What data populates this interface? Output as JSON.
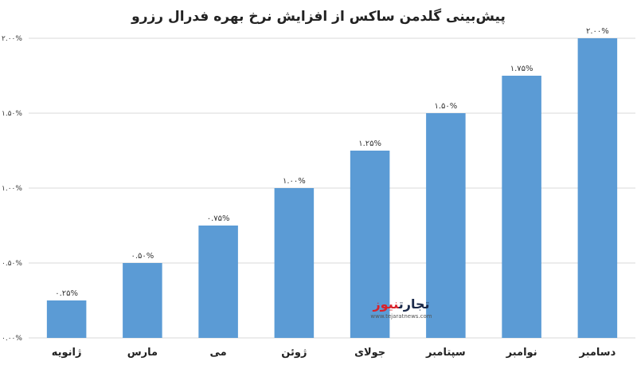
{
  "chart_data": {
    "type": "bar",
    "title": "پیش‌بینی گلدمن ساکس از افزایش نرخ بهره فدرال رزرو",
    "categories": [
      "ژانویه",
      "مارس",
      "می",
      "ژوئن",
      "جولای",
      "سپتامبر",
      "نوامبر",
      "دسامبر"
    ],
    "values": [
      0.25,
      0.5,
      0.75,
      1.0,
      1.25,
      1.5,
      1.75,
      2.0
    ],
    "value_labels": [
      "۰.۲۵%",
      "۰.۵۰%",
      "۰.۷۵%",
      "۱.۰۰%",
      "۱.۲۵%",
      "۱.۵۰%",
      "۱.۷۵%",
      "۲.۰۰%"
    ],
    "ylim": [
      0,
      2.0
    ],
    "yticks": [
      0,
      0.5,
      1.0,
      1.5,
      2.0
    ],
    "ytick_labels": [
      "۰.۰۰%",
      "۰.۵۰%",
      "۱.۰۰%",
      "۱.۵۰%",
      "۲.۰۰%"
    ],
    "grid": true,
    "bar_color": "#5b9bd5",
    "xlabel": "",
    "ylabel": ""
  },
  "watermark": {
    "brand_part1": "تجارت",
    "brand_part2": "نیوز",
    "url": "www.tejaratnews.com"
  }
}
